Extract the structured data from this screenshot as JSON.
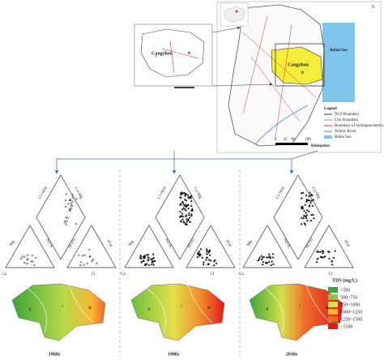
{
  "map": {
    "sea": "Bohai Sea",
    "city": "Cangzhou",
    "legend_title": "Legend",
    "legend_items": [
      "NCP Boundary",
      "City Boundary",
      "Boundary of hydrogeochemical zone",
      "Yellow River",
      "Bohai Sea"
    ],
    "scale": [
      "0",
      "45",
      "90",
      "180"
    ],
    "scale_unit": "Kilometers"
  },
  "inset": {
    "city": "Cangzhou"
  },
  "zone_labels": [
    "Ⅰ",
    "Ⅱ",
    "Ⅲ"
  ],
  "piper_labels": {
    "diamond_left": "Cl+SO4",
    "diamond_right": "Ca+Mg",
    "left_left": "Mg",
    "left_right": "Na+K",
    "right_left": "HCO3",
    "right_right": "SO4",
    "left_base": "Ca",
    "right_base": "Cl"
  },
  "panels": [
    {
      "decade": "1960s"
    },
    {
      "decade": "1980s"
    },
    {
      "decade": "2010s"
    }
  ],
  "tds_legend": {
    "title": "TDS (mg/L)",
    "classes": [
      {
        "label": "<500",
        "color": "#3aa63a"
      },
      {
        "label": "500~750",
        "color": "#8cc63f"
      },
      {
        "label": "750~1000",
        "color": "#d7e04a"
      },
      {
        "label": "1000~1250",
        "color": "#f7b733"
      },
      {
        "label": "1250~1500",
        "color": "#ef6a2a"
      },
      {
        "label": ">1500",
        "color": "#e0191b"
      }
    ]
  }
}
